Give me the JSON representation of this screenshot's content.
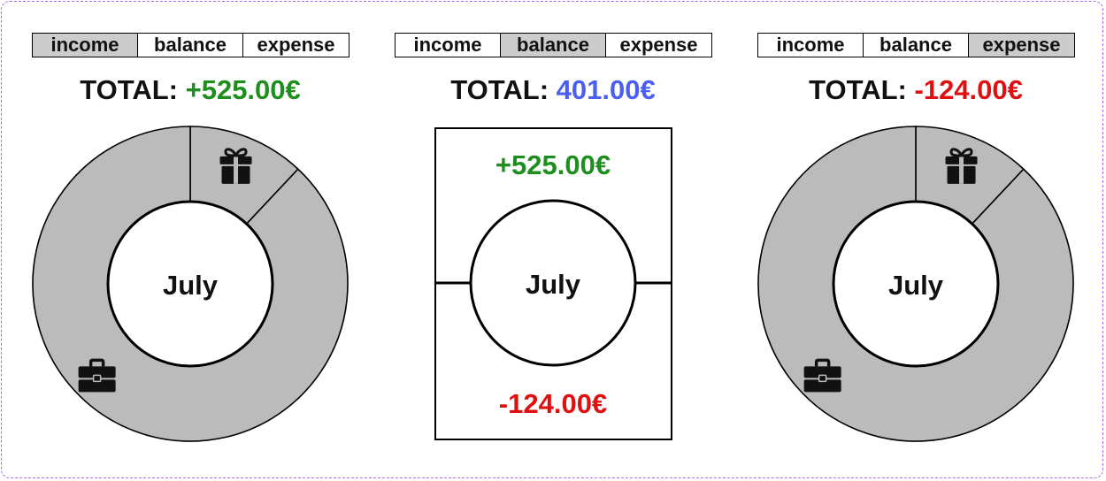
{
  "tabs": [
    "income",
    "balance",
    "expense"
  ],
  "colors": {
    "income": "#1e8e1e",
    "balance": "#4a5ff0",
    "expense": "#e01010",
    "segment": "#bbbbbb",
    "active_tab": "#cccccc"
  },
  "panels": [
    {
      "view": "income",
      "active_tab_index": 0,
      "total_label": "TOTAL:",
      "total_value": "+525.00€",
      "total_color": "income",
      "center_label": "July",
      "segments": [
        {
          "category": "gift",
          "icon": "gift-icon",
          "share": 0.12
        },
        {
          "category": "work",
          "icon": "briefcase-icon",
          "share": 0.88
        }
      ]
    },
    {
      "view": "balance",
      "active_tab_index": 1,
      "total_label": "TOTAL:",
      "total_value": "401.00€",
      "total_color": "balance",
      "center_label": "July",
      "top_value": "+525.00€",
      "bottom_value": "-124.00€"
    },
    {
      "view": "expense",
      "active_tab_index": 2,
      "total_label": "TOTAL:",
      "total_value": "-124.00€",
      "total_color": "expense",
      "center_label": "July",
      "segments": [
        {
          "category": "gift",
          "icon": "gift-icon",
          "share": 0.12
        },
        {
          "category": "work",
          "icon": "briefcase-icon",
          "share": 0.88
        }
      ]
    }
  ]
}
